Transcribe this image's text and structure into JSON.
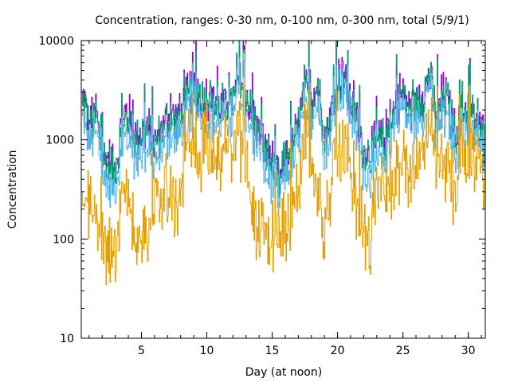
{
  "chart_data": {
    "type": "line",
    "title": "Concentration, ranges: 0-30 nm, 0-100 nm, 0-300 nm, total (5/9/1)",
    "xlabel": "Day (at noon)",
    "ylabel": "Concentration",
    "xlim": [
      0.4,
      31.3
    ],
    "ylim": [
      10,
      10000
    ],
    "yscale": "log",
    "grid": false,
    "legend": "none",
    "x_ticks": [
      5,
      10,
      15,
      20,
      25,
      30
    ],
    "x_tick_labels": [
      "5",
      "10",
      "15",
      "20",
      "25",
      "30"
    ],
    "x_minor_step": 1,
    "y_ticks": [
      10,
      100,
      1000,
      10000
    ],
    "y_tick_labels": [
      "10",
      "100",
      "1000",
      "10000"
    ],
    "x": [
      0.5,
      1,
      1.5,
      2,
      2.5,
      3,
      3.5,
      4,
      4.5,
      5,
      5.5,
      6,
      6.5,
      7,
      7.5,
      8,
      8.5,
      9,
      9.5,
      10,
      10.5,
      11,
      11.5,
      12,
      12.5,
      13,
      13.5,
      14,
      14.5,
      15,
      15.5,
      16,
      16.5,
      17,
      17.5,
      18,
      18.5,
      19,
      19.5,
      20,
      20.5,
      21,
      21.5,
      22,
      22.5,
      23,
      23.5,
      24,
      24.5,
      25,
      25.5,
      26,
      26.5,
      27,
      27.5,
      28,
      28.5,
      29,
      29.5,
      30,
      30.5,
      31,
      31.3
    ],
    "series": [
      {
        "name": "total",
        "color": "#9400d3",
        "values": [
          2550,
          1600,
          1930,
          770,
          640,
          480,
          1460,
          1760,
          1110,
          1220,
          1330,
          920,
          1330,
          1760,
          1600,
          1930,
          2790,
          3360,
          2790,
          2790,
          2330,
          2120,
          2550,
          2550,
          4040,
          3060,
          1600,
          1330,
          770,
          640,
          400,
          700,
          840,
          1600,
          3060,
          2550,
          3680,
          1220,
          1760,
          4430,
          4040,
          2550,
          1600,
          770,
          700,
          1010,
          1010,
          1460,
          2550,
          3060,
          1930,
          2550,
          2790,
          5330,
          1760,
          2790,
          2330,
          1110,
          1930,
          2120,
          1600,
          1110,
          840
        ]
      },
      {
        "name": "0-300 nm",
        "color": "#009e73",
        "values": [
          2350,
          1480,
          1780,
          700,
          580,
          440,
          1350,
          1620,
          1020,
          1130,
          1230,
          850,
          1230,
          1620,
          1480,
          1780,
          2580,
          3100,
          2580,
          2580,
          2150,
          1960,
          2350,
          2350,
          3730,
          2830,
          1480,
          1230,
          710,
          590,
          370,
          650,
          780,
          1480,
          2830,
          2350,
          3400,
          1130,
          1620,
          4090,
          3730,
          2350,
          1480,
          710,
          650,
          930,
          930,
          1350,
          2350,
          2830,
          1780,
          2350,
          2580,
          4930,
          1620,
          2580,
          2150,
          1030,
          1780,
          1960,
          1480,
          1030,
          780
        ]
      },
      {
        "name": "0-100 nm",
        "color": "#56b4e9",
        "values": [
          1600,
          1000,
          1150,
          420,
          330,
          300,
          870,
          1050,
          620,
          720,
          760,
          560,
          800,
          1050,
          960,
          1150,
          1900,
          2300,
          1900,
          1800,
          1500,
          1350,
          1600,
          1650,
          2700,
          1950,
          950,
          780,
          450,
          380,
          260,
          420,
          520,
          1000,
          2000,
          1700,
          2500,
          700,
          1150,
          3200,
          2800,
          1600,
          950,
          450,
          420,
          600,
          620,
          950,
          1700,
          2100,
          1250,
          1600,
          1850,
          4000,
          1100,
          1800,
          1500,
          700,
          1250,
          1400,
          1050,
          720,
          560
        ]
      },
      {
        "name": "0-30 nm",
        "color": "#e69f00",
        "values": [
          305,
          192,
          133,
          92,
          70,
          84,
          278,
          305,
          101,
          121,
          92,
          211,
          278,
          334,
          175,
          305,
          1010,
          700,
          700,
          1110,
          640,
          580,
          840,
          700,
          1110,
          640,
          146,
          121,
          92,
          101,
          84,
          121,
          192,
          367,
          840,
          483,
          367,
          121,
          334,
          1110,
          640,
          483,
          175,
          133,
          110,
          253,
          305,
          334,
          402,
          700,
          367,
          441,
          1010,
          1600,
          581,
          483,
          483,
          305,
          841,
          700,
          581,
          483,
          253
        ]
      }
    ]
  }
}
